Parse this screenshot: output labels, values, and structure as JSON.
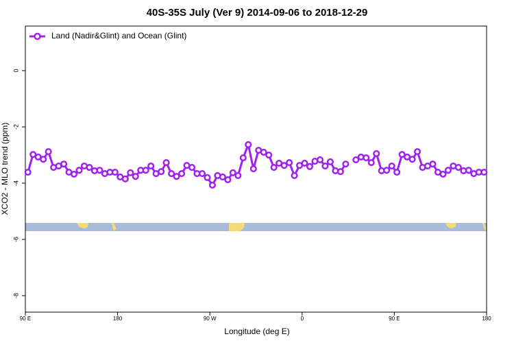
{
  "chart_data": {
    "type": "line",
    "title": "40S-35S July (Ver 9)   2014-09-06 to 2018-12-29",
    "x_label": "Longitude (deg E)",
    "y_label": "XCO2 - MLO trend (ppm)",
    "x": [
      92.5,
      97.5,
      102.5,
      107.5,
      112.5,
      117.5,
      122.5,
      127.5,
      132.5,
      137.5,
      142.5,
      147.5,
      152.5,
      157.5,
      162.5,
      167.5,
      172.5,
      177.5,
      182.5,
      187.5,
      192.5,
      197.5,
      202.5,
      207.5,
      212.5,
      217.5,
      222.5,
      227.5,
      232.5,
      237.5,
      242.5,
      247.5,
      252.5,
      257.5,
      262.5,
      267.5,
      272.5,
      277.5,
      282.5,
      287.5,
      292.5,
      297.5,
      302.5,
      307.5,
      312.5,
      317.5,
      322.5,
      327.5,
      332.5,
      337.5,
      342.5,
      347.5,
      352.5,
      357.5,
      362.5,
      367.5,
      372.5,
      377.5,
      382.5,
      387.5,
      392.5,
      397.5,
      402.5,
      407.5,
      412.5,
      417.5,
      422.5,
      427.5,
      432.5,
      437.5,
      442.5,
      447.5,
      452.5,
      457.5,
      462.5,
      467.5,
      472.5,
      477.5,
      482.5,
      487.5,
      492.5,
      497.5,
      502.5,
      507.5,
      512.5,
      517.5,
      522.5,
      527.5,
      532.5,
      537.5
    ],
    "series": [
      {
        "name": "Land (Nadir&Glint) and Ocean (Glint)",
        "color": "#a020f0",
        "values": [
          -3.61,
          -2.98,
          -3.07,
          -3.15,
          -2.88,
          -3.44,
          -3.39,
          -3.32,
          -3.61,
          -3.68,
          -3.54,
          -3.39,
          -3.44,
          -3.56,
          -3.54,
          -3.66,
          -3.61,
          -3.61,
          -3.78,
          -3.85,
          -3.63,
          -3.76,
          -3.54,
          -3.54,
          -3.39,
          -3.66,
          -3.59,
          -3.27,
          -3.66,
          -3.76,
          -3.66,
          -3.37,
          -3.44,
          -3.66,
          -3.66,
          -3.8,
          -4.07,
          -3.73,
          -3.78,
          -3.88,
          -3.63,
          -3.73,
          -3.1,
          -2.63,
          -3.49,
          -2.83,
          -2.9,
          -3.0,
          -3.44,
          -3.29,
          -3.37,
          -3.27,
          -3.73,
          -3.37,
          -3.29,
          -3.41,
          -3.22,
          -3.17,
          -3.39,
          -3.24,
          -3.56,
          -3.59,
          -3.32,
          null,
          -3.17,
          -3.07,
          -3.1,
          -3.27,
          -2.95,
          -3.56,
          -3.54,
          -3.39,
          -3.61,
          -2.98,
          -3.07,
          -3.15,
          -2.88,
          -3.44,
          -3.39,
          -3.32,
          -3.61,
          -3.68,
          -3.54,
          -3.39,
          -3.44,
          -3.56,
          -3.54,
          -3.66,
          -3.61,
          -3.61
        ]
      }
    ],
    "xlim": [
      90,
      540
    ],
    "xticks": [
      {
        "value": 90,
        "label": "90 E"
      },
      180,
      {
        "value": 270,
        "label": "90 W"
      },
      {
        "value": 360,
        "label": "0"
      },
      {
        "value": 450,
        "label": "90 E"
      },
      {
        "value": 540,
        "label": "180"
      }
    ],
    "ylim": [
      -8.585,
      1.585
    ],
    "yticks": [
      0,
      -2,
      -4,
      -6,
      -8
    ],
    "legend": "upper left"
  }
}
